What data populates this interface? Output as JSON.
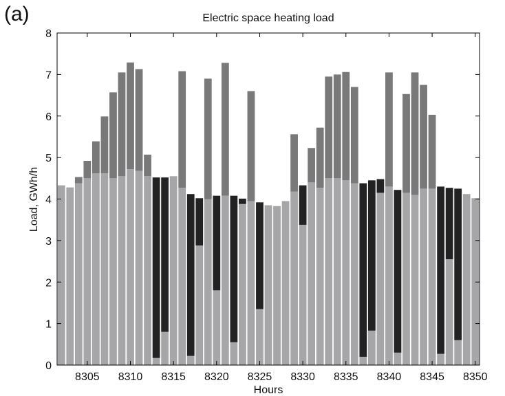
{
  "panel_label": "(a)",
  "chart_data": {
    "type": "bar",
    "stacked": true,
    "title": "Electric space heating load",
    "xlabel": "Hours",
    "ylabel": "Load, GWh/h",
    "xlim": [
      8301.5,
      8350.5
    ],
    "ylim": [
      0,
      8
    ],
    "xticks": [
      8305,
      8310,
      8315,
      8320,
      8325,
      8330,
      8335,
      8340,
      8345,
      8350
    ],
    "yticks": [
      0,
      1,
      2,
      3,
      4,
      5,
      6,
      7,
      8
    ],
    "grid": false,
    "legend": "none",
    "x": [
      8302,
      8303,
      8304,
      8305,
      8306,
      8307,
      8308,
      8309,
      8310,
      8311,
      8312,
      8313,
      8314,
      8315,
      8316,
      8317,
      8318,
      8319,
      8320,
      8321,
      8322,
      8323,
      8324,
      8325,
      8326,
      8327,
      8328,
      8329,
      8330,
      8331,
      8332,
      8333,
      8334,
      8335,
      8336,
      8337,
      8338,
      8339,
      8340,
      8341,
      8342,
      8343,
      8344,
      8345,
      8346,
      8347,
      8348,
      8349,
      8350
    ],
    "series": [
      {
        "color": "#a6a6a8",
        "values": [
          4.33,
          4.28,
          4.38,
          4.5,
          4.62,
          4.62,
          4.5,
          4.55,
          4.72,
          4.68,
          4.55,
          0.17,
          0.8,
          4.55,
          4.27,
          0.22,
          2.88,
          4.0,
          1.8,
          4.08,
          0.55,
          3.88,
          3.95,
          1.35,
          3.85,
          3.83,
          3.95,
          4.18,
          3.38,
          4.4,
          4.27,
          4.5,
          4.5,
          4.45,
          4.38,
          0.2,
          0.83,
          4.15,
          4.3,
          0.3,
          4.15,
          4.1,
          4.25,
          4.25,
          0.27,
          2.55,
          0.6,
          4.12,
          4.02
        ]
      },
      {
        "color": "#222222",
        "values": [
          0,
          0,
          0,
          0,
          0,
          0,
          0,
          0,
          0,
          0,
          0,
          4.35,
          3.72,
          0,
          0,
          3.9,
          1.14,
          0,
          2.28,
          0,
          3.53,
          0.13,
          0,
          2.57,
          0,
          0,
          0,
          0,
          0.95,
          0,
          0,
          0,
          0,
          0,
          0,
          4.18,
          3.62,
          0.33,
          0,
          3.92,
          0,
          0,
          0,
          0,
          4.03,
          1.72,
          3.65,
          0,
          0
        ]
      },
      {
        "color": "#797979",
        "values": [
          0,
          0,
          0.15,
          0.42,
          0.77,
          1.37,
          2.07,
          2.5,
          2.57,
          2.45,
          0.52,
          0,
          0,
          0,
          2.81,
          0,
          0,
          2.9,
          0,
          3.2,
          0,
          0,
          2.65,
          0,
          0,
          0,
          0,
          1.38,
          0,
          0.83,
          1.45,
          2.45,
          2.5,
          2.61,
          2.32,
          0,
          0,
          0,
          2.75,
          0,
          2.38,
          2.95,
          2.5,
          1.78,
          0,
          0,
          0,
          0,
          0
        ]
      }
    ]
  }
}
